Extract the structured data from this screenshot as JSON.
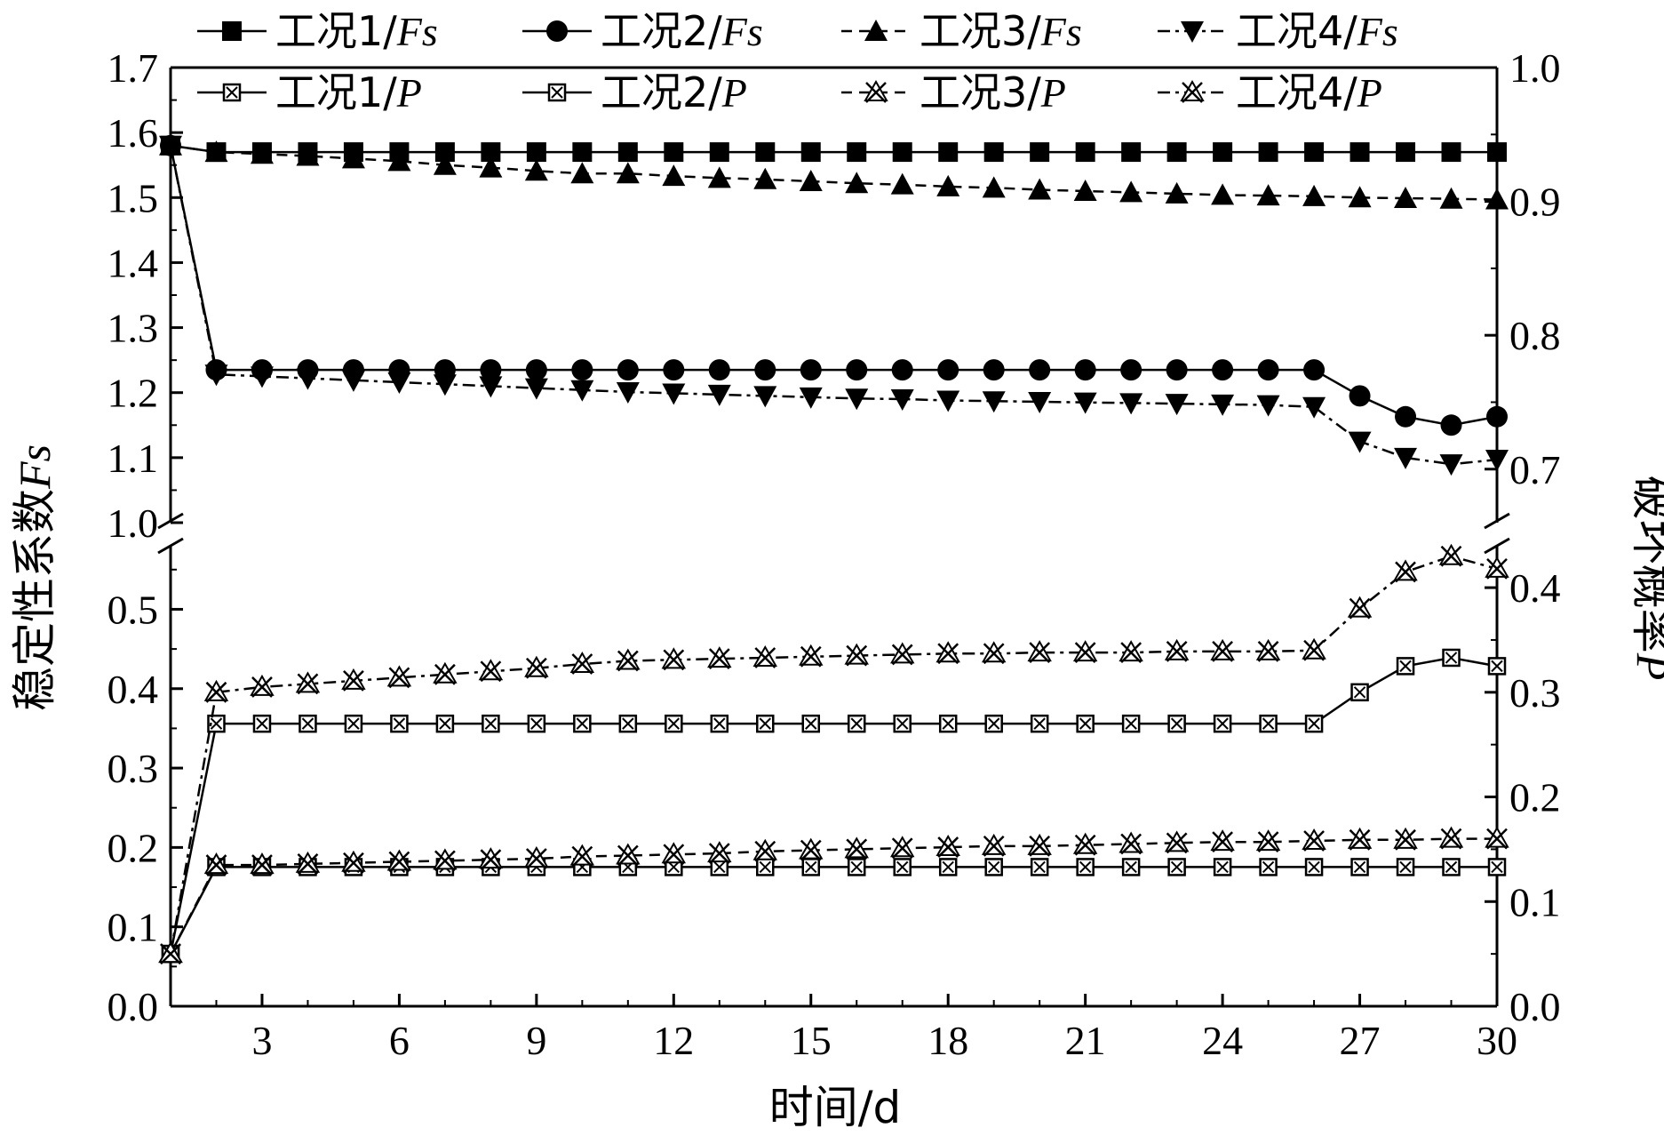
{
  "chart_data": {
    "type": "line",
    "xlabel": "时间/d",
    "ylabel_left": "稳定性系数Fs",
    "ylabel_right": "破坏概率P",
    "x_ticks": [
      3,
      6,
      9,
      12,
      15,
      18,
      21,
      24,
      27,
      30
    ],
    "x_range": [
      1,
      30
    ],
    "left_axis": {
      "break": [
        0.58,
        1.0
      ],
      "lower_ticks": [
        "0.0",
        "0.1",
        "0.2",
        "0.3",
        "0.4",
        "0.5"
      ],
      "upper_ticks": [
        "1.0",
        "1.1",
        "1.2",
        "1.3",
        "1.4",
        "1.5",
        "1.6",
        "1.7"
      ]
    },
    "right_axis": {
      "break": [
        0.44,
        0.66
      ],
      "lower_ticks": [
        "0.0",
        "0.1",
        "0.2",
        "0.3",
        "0.4"
      ],
      "upper_ticks": [
        "0.7",
        "0.8",
        "0.9",
        "1.0"
      ]
    },
    "legend": {
      "fs": [
        {
          "prefix": "工况1/",
          "suffix": "Fs"
        },
        {
          "prefix": "工况2/",
          "suffix": "Fs"
        },
        {
          "prefix": "工况3/",
          "suffix": "Fs"
        },
        {
          "prefix": "工况4/",
          "suffix": "Fs"
        }
      ],
      "p": [
        {
          "prefix": "工况1/",
          "suffix": "P"
        },
        {
          "prefix": "工况2/",
          "suffix": "P"
        },
        {
          "prefix": "工况3/",
          "suffix": "P"
        },
        {
          "prefix": "工况4/",
          "suffix": "P"
        }
      ]
    },
    "series": [
      {
        "name": "工况1/Fs",
        "axis": "left",
        "marker": "square",
        "dash": "solid",
        "x": [
          1,
          2,
          3,
          4,
          5,
          6,
          7,
          8,
          9,
          10,
          11,
          12,
          13,
          14,
          15,
          16,
          17,
          18,
          19,
          20,
          21,
          22,
          23,
          24,
          25,
          26,
          27,
          28,
          29,
          30
        ],
        "y": [
          1.58,
          1.57,
          1.57,
          1.57,
          1.57,
          1.57,
          1.57,
          1.57,
          1.57,
          1.57,
          1.57,
          1.57,
          1.57,
          1.57,
          1.57,
          1.57,
          1.57,
          1.57,
          1.57,
          1.57,
          1.57,
          1.57,
          1.57,
          1.57,
          1.57,
          1.57,
          1.57,
          1.57,
          1.57,
          1.57
        ]
      },
      {
        "name": "工况2/Fs",
        "axis": "left",
        "marker": "circle",
        "dash": "solid",
        "x": [
          1,
          2,
          3,
          4,
          5,
          6,
          7,
          8,
          9,
          10,
          11,
          12,
          13,
          14,
          15,
          16,
          17,
          18,
          19,
          20,
          21,
          22,
          23,
          24,
          25,
          26,
          27,
          28,
          29,
          30
        ],
        "y": [
          1.58,
          1.235,
          1.235,
          1.235,
          1.235,
          1.235,
          1.235,
          1.235,
          1.235,
          1.235,
          1.235,
          1.235,
          1.235,
          1.235,
          1.235,
          1.235,
          1.235,
          1.235,
          1.235,
          1.235,
          1.235,
          1.235,
          1.235,
          1.235,
          1.235,
          1.235,
          1.195,
          1.163,
          1.15,
          1.163
        ]
      },
      {
        "name": "工况3/Fs",
        "axis": "left",
        "marker": "triangle-up",
        "dash": "dashed",
        "x": [
          1,
          2,
          3,
          4,
          5,
          6,
          7,
          8,
          9,
          10,
          11,
          12,
          13,
          14,
          15,
          16,
          17,
          18,
          19,
          20,
          21,
          22,
          23,
          24,
          25,
          26,
          27,
          28,
          29,
          30
        ],
        "y": [
          1.58,
          1.57,
          1.567,
          1.564,
          1.56,
          1.556,
          1.55,
          1.546,
          1.541,
          1.537,
          1.537,
          1.533,
          1.53,
          1.528,
          1.525,
          1.522,
          1.52,
          1.517,
          1.515,
          1.512,
          1.51,
          1.508,
          1.506,
          1.504,
          1.503,
          1.502,
          1.5,
          1.499,
          1.498,
          1.497
        ]
      },
      {
        "name": "工况4/Fs",
        "axis": "left",
        "marker": "triangle-down",
        "dash": "dashdot",
        "x": [
          1,
          2,
          3,
          4,
          5,
          6,
          7,
          8,
          9,
          10,
          11,
          12,
          13,
          14,
          15,
          16,
          17,
          18,
          19,
          20,
          21,
          22,
          23,
          24,
          25,
          26,
          27,
          28,
          29,
          30
        ],
        "y": [
          1.58,
          1.228,
          1.225,
          1.222,
          1.219,
          1.216,
          1.213,
          1.21,
          1.207,
          1.204,
          1.201,
          1.199,
          1.197,
          1.195,
          1.193,
          1.191,
          1.19,
          1.188,
          1.187,
          1.186,
          1.185,
          1.184,
          1.183,
          1.182,
          1.181,
          1.178,
          1.125,
          1.1,
          1.09,
          1.097
        ]
      },
      {
        "name": "工况1/P",
        "axis": "right",
        "marker": "boxed-x",
        "dash": "solid",
        "x": [
          1,
          2,
          3,
          4,
          5,
          6,
          7,
          8,
          9,
          10,
          11,
          12,
          13,
          14,
          15,
          16,
          17,
          18,
          19,
          20,
          21,
          22,
          23,
          24,
          25,
          26,
          27,
          28,
          29,
          30
        ],
        "y": [
          0.05,
          0.133,
          0.133,
          0.133,
          0.133,
          0.133,
          0.133,
          0.133,
          0.133,
          0.133,
          0.133,
          0.133,
          0.133,
          0.133,
          0.133,
          0.133,
          0.133,
          0.133,
          0.133,
          0.133,
          0.133,
          0.133,
          0.133,
          0.133,
          0.133,
          0.133,
          0.133,
          0.133,
          0.133,
          0.133
        ]
      },
      {
        "name": "工况2/P",
        "axis": "right",
        "marker": "boxed-x",
        "dash": "solid",
        "x": [
          1,
          2,
          3,
          4,
          5,
          6,
          7,
          8,
          9,
          10,
          11,
          12,
          13,
          14,
          15,
          16,
          17,
          18,
          19,
          20,
          21,
          22,
          23,
          24,
          25,
          26,
          27,
          28,
          29,
          30
        ],
        "y": [
          0.05,
          0.27,
          0.27,
          0.27,
          0.27,
          0.27,
          0.27,
          0.27,
          0.27,
          0.27,
          0.27,
          0.27,
          0.27,
          0.27,
          0.27,
          0.27,
          0.27,
          0.27,
          0.27,
          0.27,
          0.27,
          0.27,
          0.27,
          0.27,
          0.27,
          0.27,
          0.3,
          0.325,
          0.333,
          0.325
        ]
      },
      {
        "name": "工况3/P",
        "axis": "right",
        "marker": "star-triangle",
        "dash": "dashed",
        "x": [
          1,
          2,
          3,
          4,
          5,
          6,
          7,
          8,
          9,
          10,
          11,
          12,
          13,
          14,
          15,
          16,
          17,
          18,
          19,
          20,
          21,
          22,
          23,
          24,
          25,
          26,
          27,
          28,
          29,
          30
        ],
        "y": [
          0.05,
          0.135,
          0.135,
          0.136,
          0.137,
          0.138,
          0.139,
          0.14,
          0.141,
          0.143,
          0.144,
          0.145,
          0.146,
          0.148,
          0.149,
          0.15,
          0.151,
          0.152,
          0.153,
          0.153,
          0.154,
          0.155,
          0.156,
          0.157,
          0.157,
          0.158,
          0.159,
          0.159,
          0.16,
          0.16
        ]
      },
      {
        "name": "工况4/P",
        "axis": "right",
        "marker": "star-triangle",
        "dash": "dashdot",
        "x": [
          1,
          2,
          3,
          4,
          5,
          6,
          7,
          8,
          9,
          10,
          11,
          12,
          13,
          14,
          15,
          16,
          17,
          18,
          19,
          20,
          21,
          22,
          23,
          24,
          25,
          26,
          27,
          28,
          29,
          30
        ],
        "y": [
          0.05,
          0.3,
          0.305,
          0.308,
          0.311,
          0.314,
          0.317,
          0.32,
          0.323,
          0.327,
          0.33,
          0.331,
          0.332,
          0.333,
          0.334,
          0.335,
          0.336,
          0.337,
          0.337,
          0.338,
          0.338,
          0.338,
          0.339,
          0.339,
          0.339,
          0.34,
          0.38,
          0.415,
          0.43,
          0.418
        ]
      }
    ]
  }
}
